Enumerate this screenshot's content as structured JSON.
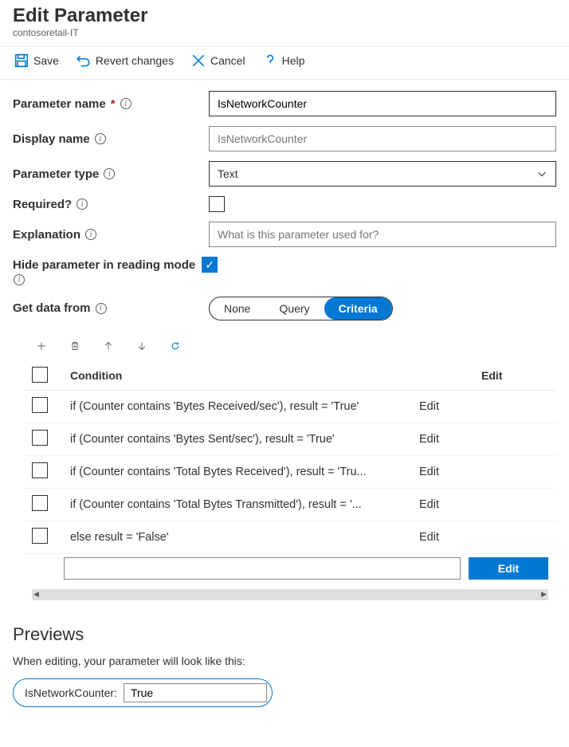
{
  "colors": {
    "accent": "#0078d4",
    "text": "#323130",
    "subtle": "#605e5c",
    "border": "#edebe9",
    "required": "#a4262c"
  },
  "header": {
    "title": "Edit Parameter",
    "subtitle": "contosoretail-IT"
  },
  "toolbar": {
    "save": "Save",
    "revert": "Revert changes",
    "cancel": "Cancel",
    "help": "Help"
  },
  "form": {
    "param_name_label": "Parameter name",
    "param_name_value": "IsNetworkCounter",
    "display_name_label": "Display name",
    "display_name_placeholder": "IsNetworkCounter",
    "param_type_label": "Parameter type",
    "param_type_value": "Text",
    "required_label": "Required?",
    "required_checked": false,
    "explanation_label": "Explanation",
    "explanation_placeholder": "What is this parameter used for?",
    "hide_label": "Hide parameter in reading mode",
    "hide_checked": true,
    "get_data_label": "Get data from",
    "get_data_options": [
      "None",
      "Query",
      "Criteria"
    ],
    "get_data_selected": "Criteria"
  },
  "criteria": {
    "header_condition": "Condition",
    "header_edit": "Edit",
    "rows": [
      {
        "condition": "if (Counter contains 'Bytes Received/sec'), result = 'True'",
        "edit": "Edit"
      },
      {
        "condition": "if (Counter contains 'Bytes Sent/sec'), result = 'True'",
        "edit": "Edit"
      },
      {
        "condition": "if (Counter contains 'Total Bytes Received'), result = 'Tru...",
        "edit": "Edit"
      },
      {
        "condition": "if (Counter contains 'Total Bytes Transmitted'), result = '...",
        "edit": "Edit"
      },
      {
        "condition": "else result = 'False'",
        "edit": "Edit"
      }
    ],
    "footer_edit": "Edit"
  },
  "previews": {
    "heading": "Previews",
    "description": "When editing, your parameter will look like this:",
    "label": "IsNetworkCounter:",
    "value": "True"
  }
}
